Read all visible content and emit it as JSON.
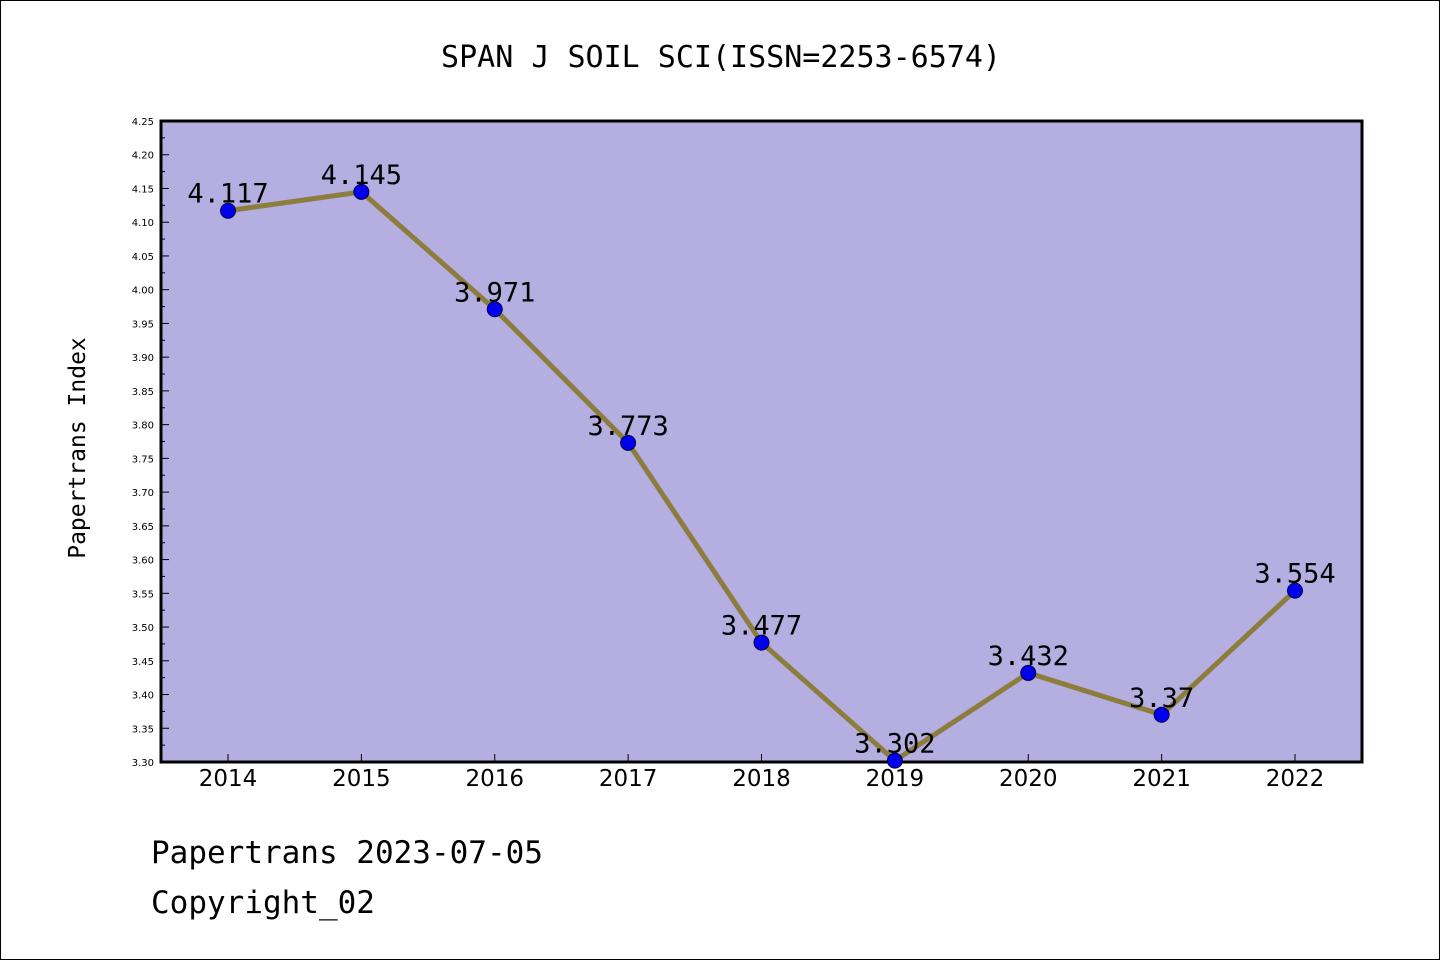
{
  "chart_data": {
    "type": "line",
    "title": "SPAN J SOIL SCI(ISSN=2253-6574)",
    "xlabel": "",
    "ylabel": "Papertrans Index",
    "categories": [
      "2014",
      "2015",
      "2016",
      "2017",
      "2018",
      "2019",
      "2020",
      "2021",
      "2022"
    ],
    "series": [
      {
        "values": [
          4.117,
          4.145,
          3.971,
          3.773,
          3.477,
          3.302,
          3.432,
          3.37,
          3.554
        ],
        "labels": [
          "4.117",
          "4.145",
          "3.971",
          "3.773",
          "3.477",
          "3.302",
          "3.432",
          "3.37",
          "3.554"
        ]
      }
    ],
    "ylim": [
      3.3,
      4.25
    ],
    "yticks": [
      "3.30",
      "3.35",
      "3.40",
      "3.45",
      "3.50",
      "3.55",
      "3.60",
      "3.65",
      "3.70",
      "3.75",
      "3.80",
      "3.85",
      "3.90",
      "3.95",
      "4.00",
      "4.05",
      "4.10",
      "4.15",
      "4.20",
      "4.25"
    ],
    "grid": false,
    "colors": {
      "plot_background": "#b5aee1",
      "line": "#8c7d3c",
      "marker": "#0000ee",
      "axis": "#000000"
    }
  },
  "footer": {
    "line1": "Papertrans 2023-07-05",
    "line2": "Copyright_02"
  }
}
